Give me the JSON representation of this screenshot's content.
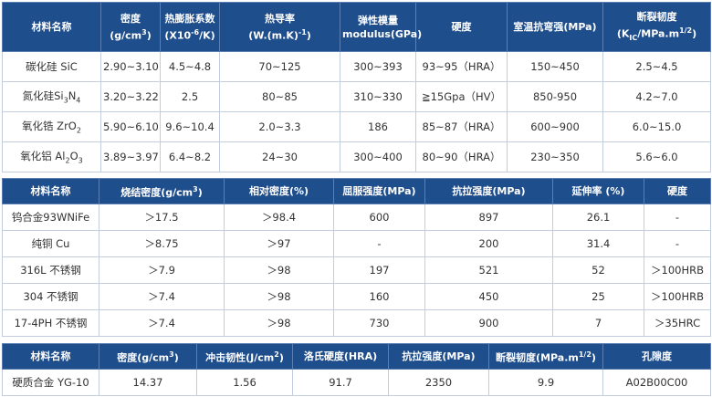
{
  "tables": [
    {
      "headers": [
        "材料名称",
        [
          "密度",
          [
            {
              "t": "(g/cm"
            },
            {
              "sup": "3"
            },
            {
              "t": ")"
            }
          ]
        ],
        [
          "热膨胀系数",
          [
            {
              "t": "(X10"
            },
            {
              "sup": "-6"
            },
            {
              "t": "/K)"
            }
          ]
        ],
        [
          "热导率",
          [
            {
              "t": "(W.(m.K)"
            },
            {
              "sup": "-1"
            },
            {
              "t": ")"
            }
          ]
        ],
        [
          "弹性模量",
          "modulus(GPa)"
        ],
        "硬度",
        "室温抗弯强(MPa)",
        [
          "断裂韧度",
          [
            {
              "t": "(K"
            },
            {
              "sub": "IC"
            },
            {
              "t": "/MPa.m"
            },
            {
              "sup": "1/2"
            },
            {
              "t": ")"
            }
          ]
        ]
      ],
      "rows": [
        [
          "碳化硅 SiC",
          "2.90~3.10",
          "4.5~4.8",
          "70~125",
          "300~393",
          "93~95（HRA）",
          "150~450",
          "2.5~4.5"
        ],
        [
          [
            {
              "t": "氮化硅Si"
            },
            {
              "sub": "3"
            },
            {
              "t": "N"
            },
            {
              "sub": "4"
            }
          ],
          "3.20~3.22",
          "2.5",
          "80~85",
          "310~330",
          "≧15Gpa（HV）",
          "850-950",
          "4.2~7.0"
        ],
        [
          [
            {
              "t": "氧化锆 ZrO"
            },
            {
              "sub": "2"
            }
          ],
          "5.90~6.10",
          "9.6~10.4",
          "2.0~3.3",
          "186",
          "85~87（HRA）",
          "600~900",
          "6.0~15.0"
        ],
        [
          [
            {
              "t": "氧化铝 Al"
            },
            {
              "sub": "2"
            },
            {
              "t": "O"
            },
            {
              "sub": "3"
            }
          ],
          "3.89~3.97",
          "6.4~8.2",
          "24~30",
          "300~400",
          "80~90（HRA）",
          "230~350",
          "5.6~6.0"
        ]
      ]
    },
    {
      "headers": [
        "材料名称",
        [
          {
            "t": "烧结密度(g/cm"
          },
          {
            "sup": "3"
          },
          {
            "t": ")"
          }
        ],
        "相对密度(%)",
        "屈服强度(MPa)",
        "抗拉强度(MPa)",
        "延伸率 (%)",
        "硬度"
      ],
      "rows": [
        [
          "钨合金93WNiFe",
          "＞17.5",
          "＞98.4",
          "600",
          "897",
          "26.1",
          "-"
        ],
        [
          "纯铜 Cu",
          "＞8.75",
          "＞97",
          "-",
          "200",
          "31.4",
          "-"
        ],
        [
          "316L 不锈钢",
          "＞7.9",
          "＞98",
          "197",
          "521",
          "52",
          "＞100HRB"
        ],
        [
          "304 不锈钢",
          "＞7.4",
          "＞98",
          "160",
          "450",
          "25",
          "＞100HRB"
        ],
        [
          "17-4PH 不锈钢",
          "＞7.4",
          "＞98",
          "730",
          "900",
          "7",
          "＞35HRC"
        ]
      ]
    },
    {
      "headers": [
        "材料名称",
        [
          {
            "t": "密度(g/cm"
          },
          {
            "sup": "3"
          },
          {
            "t": ")"
          }
        ],
        [
          {
            "t": "冲击韧性(J/cm"
          },
          {
            "sup": "2"
          },
          {
            "t": ")"
          }
        ],
        "洛氏硬度(HRA)",
        "抗拉强度(MPa)",
        [
          {
            "t": "断裂韧度(MPa.m"
          },
          {
            "sup": "1/2"
          },
          {
            "t": ")"
          }
        ],
        "孔隙度"
      ],
      "rows": [
        [
          "硬质合金 YG-10",
          "14.37",
          "1.56",
          "91.7",
          "2350",
          "9.9",
          "A02B00C00"
        ]
      ]
    }
  ]
}
